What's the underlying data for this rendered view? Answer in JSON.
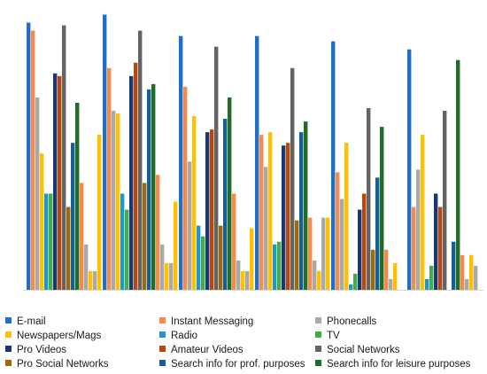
{
  "chart_data": {
    "type": "bar",
    "title": "",
    "xlabel": "",
    "ylabel": "",
    "ylim": [
      0,
      100
    ],
    "grid": false,
    "legend_position": "bottom",
    "categories": [
      "",
      "",
      "",
      "",
      "",
      ""
    ],
    "series": [
      {
        "name": "E-mail",
        "color": "#1f6fc5",
        "values": [
          100,
          103,
          95,
          95,
          93,
          90
        ]
      },
      {
        "name": "Instant Messaging",
        "color": "#f58a4b",
        "values": [
          97,
          83,
          76,
          58,
          44,
          31
        ]
      },
      {
        "name": "Phonecalls",
        "color": "#a9a9a9",
        "values": [
          72,
          67,
          48,
          46,
          34,
          45
        ]
      },
      {
        "name": "Newspapers/Mags",
        "color": "#ffc000",
        "values": [
          51,
          66,
          65,
          59,
          55,
          58
        ]
      },
      {
        "name": "Radio",
        "color": "#2196c9",
        "values": [
          36,
          36,
          24,
          17,
          2,
          4
        ]
      },
      {
        "name": "TV",
        "color": "#3fae49",
        "values": [
          36,
          30,
          20,
          18,
          6,
          9
        ]
      },
      {
        "name": "Pro Videos",
        "color": "#1a3870",
        "values": [
          81,
          80,
          59,
          54,
          30,
          36
        ]
      },
      {
        "name": "Amateur Videos",
        "color": "#b7470c",
        "values": [
          80,
          85,
          60,
          55,
          36,
          31
        ]
      },
      {
        "name": "Social Networks",
        "color": "#636363",
        "values": [
          99,
          97,
          91,
          83,
          68,
          67
        ]
      },
      {
        "name": "Pro Social Networks",
        "color": "#9a6b0a",
        "values": [
          31,
          40,
          24,
          26,
          15,
          null
        ]
      },
      {
        "name": "Search info for prof. purposes",
        "color": "#165e94",
        "values": [
          55,
          75,
          64,
          59,
          42,
          18
        ]
      },
      {
        "name": "Search info for leisure purposes",
        "color": "#1e6e26",
        "values": [
          70,
          77,
          72,
          63,
          61,
          86
        ]
      },
      {
        "name": "",
        "color": "#f58a4b",
        "values": [
          40,
          43,
          36,
          27,
          15,
          13
        ]
      },
      {
        "name": "",
        "color": "#a9a9a9",
        "values": [
          17,
          17,
          11,
          11,
          4,
          4
        ]
      },
      {
        "name": "",
        "color": "#ffc000",
        "values": [
          7,
          10,
          7,
          7,
          10,
          13
        ]
      },
      {
        "name": "",
        "color": "#a9a9a9",
        "values": [
          7,
          10,
          7,
          27,
          null,
          9
        ]
      },
      {
        "name": "",
        "color": "#ffc000",
        "values": [
          58,
          33,
          23,
          27,
          null,
          null
        ]
      }
    ]
  }
}
